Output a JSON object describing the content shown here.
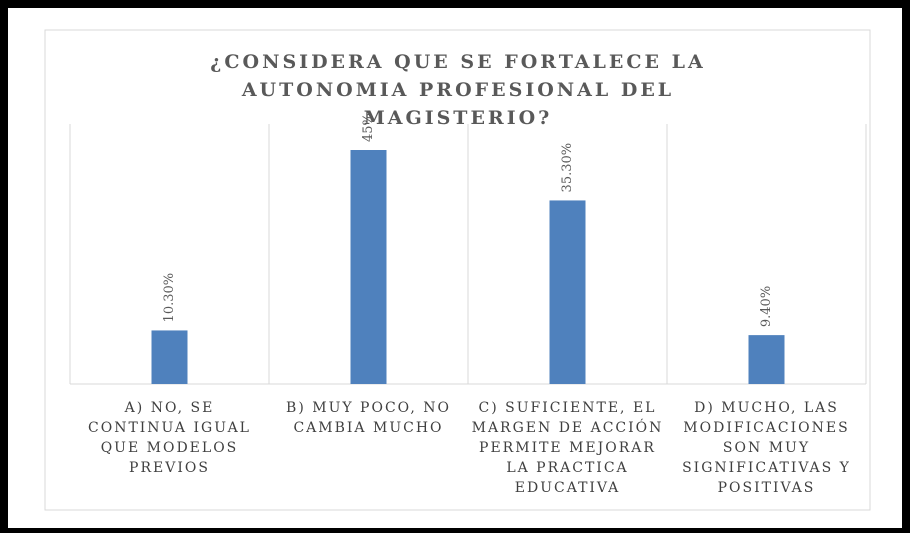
{
  "chart_data": {
    "type": "bar",
    "title": "¿CONSIDERA QUE SE FORTALECE LA AUTONOMIA PROFESIONAL DEL MAGISTERIO?",
    "categories": [
      "A) NO, SE CONTINUA IGUAL QUE MODELOS PREVIOS",
      "B) MUY POCO, NO CAMBIA MUCHO",
      "C) SUFICIENTE, EL MARGEN DE ACCIÓN PERMITE MEJORAR LA PRACTICA EDUCATIVA",
      "D) MUCHO, LAS MODIFICACIONES SON MUY SIGNIFICATIVAS Y POSITIVAS"
    ],
    "values": [
      10.3,
      45,
      35.3,
      9.4
    ],
    "value_labels": [
      "10.30%",
      "45%",
      "35.30%",
      "9.40%"
    ],
    "color": "#4f81bd",
    "ylim": [
      0,
      50
    ]
  }
}
